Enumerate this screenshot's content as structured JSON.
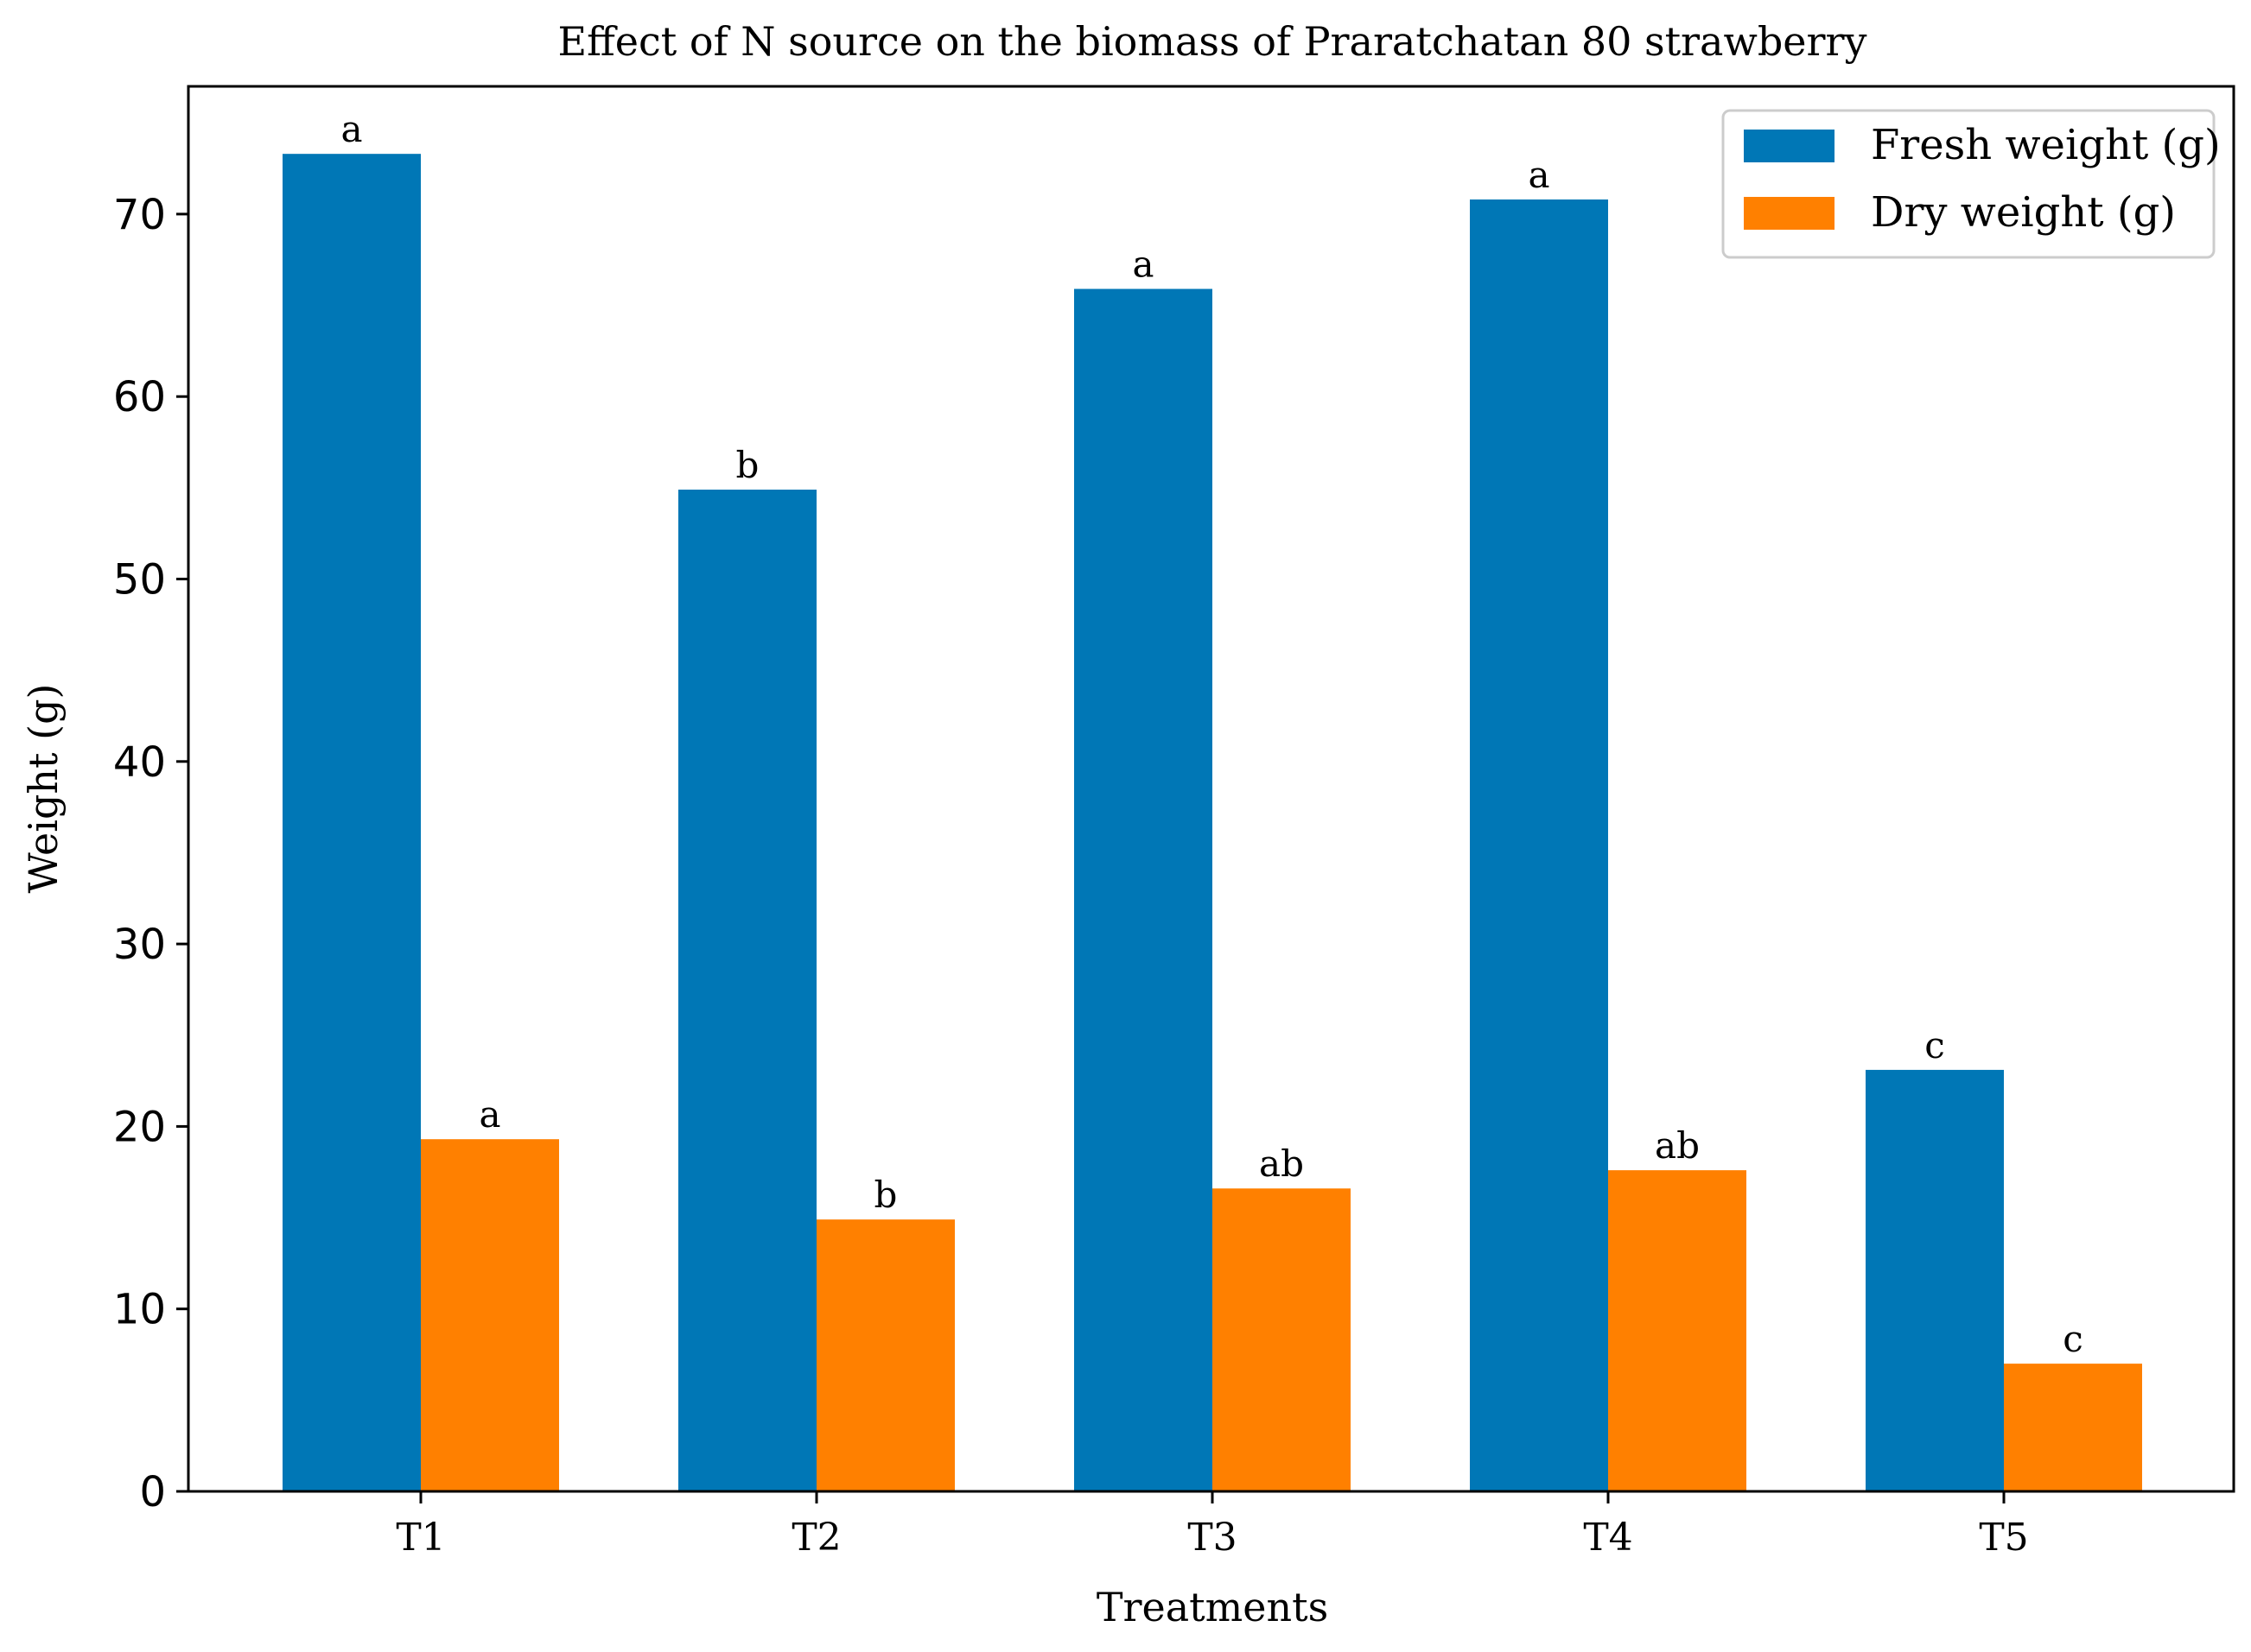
{
  "chart_data": {
    "type": "bar",
    "title": "Effect of N source on the biomass of Praratchatan 80 strawberry",
    "xlabel": "Treatments",
    "ylabel": "Weight (g)",
    "categories": [
      "T1",
      "T2",
      "T3",
      "T4",
      "T5"
    ],
    "ylim": [
      0,
      77
    ],
    "yticks": [
      0,
      10,
      20,
      30,
      40,
      50,
      60,
      70
    ],
    "grid": false,
    "legend_position": "top-right",
    "series": [
      {
        "name": "Fresh weight (g)",
        "color": "#0077b6",
        "values": [
          73.3,
          54.9,
          65.9,
          70.8,
          23.1
        ],
        "labels": [
          "a",
          "b",
          "a",
          "a",
          "c"
        ]
      },
      {
        "name": "Dry weight (g)",
        "color": "#ff8000",
        "values": [
          19.3,
          14.9,
          16.6,
          17.6,
          7.0
        ],
        "labels": [
          "a",
          "b",
          "ab",
          "ab",
          "c"
        ]
      }
    ]
  }
}
